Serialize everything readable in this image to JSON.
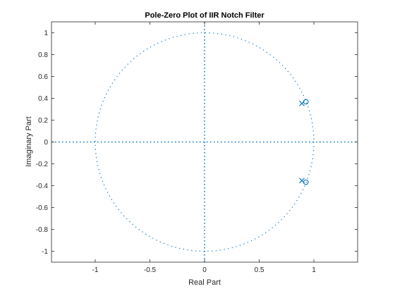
{
  "chart_data": {
    "type": "scatter",
    "title": "Pole-Zero Plot of IIR Notch Filter",
    "xlabel": "Real Part",
    "ylabel": "Imaginary Part",
    "xlim": [
      -1.4,
      1.4
    ],
    "ylim": [
      -1.1,
      1.1
    ],
    "xticks": [
      -1,
      -0.5,
      0,
      0.5,
      1
    ],
    "xtick_labels": [
      "-1",
      "-0.5",
      "0",
      "0.5",
      "1"
    ],
    "yticks": [
      -1,
      -0.8,
      -0.6,
      -0.4,
      -0.2,
      0,
      0.2,
      0.4,
      0.6,
      0.8,
      1
    ],
    "ytick_labels": [
      "-1",
      "-0.8",
      "-0.6",
      "-0.4",
      "-0.2",
      "0",
      "0.2",
      "0.4",
      "0.6",
      "0.8",
      "1"
    ],
    "grid": false,
    "unit_circle": true,
    "series": [
      {
        "marker": "o",
        "points": [
          [
            0.927,
            0.368
          ],
          [
            0.927,
            -0.368
          ]
        ]
      },
      {
        "marker": "x",
        "points": [
          [
            0.89,
            0.353
          ],
          [
            0.89,
            -0.353
          ]
        ]
      }
    ],
    "colors": {
      "series": "#0072BD",
      "axes": "#262626"
    }
  }
}
